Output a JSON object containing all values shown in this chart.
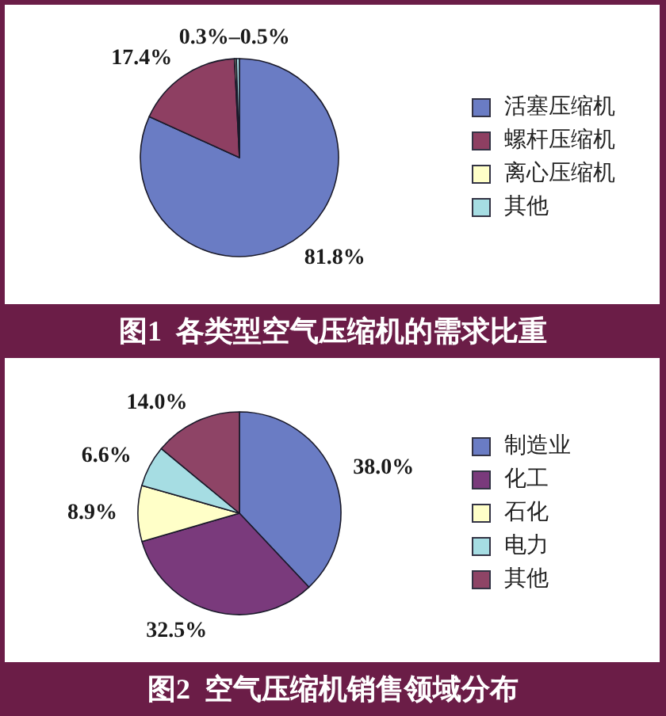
{
  "chart_data": [
    {
      "type": "pie",
      "title": "图1  各类型空气压缩机的需求比重",
      "categories": [
        "活塞压缩机",
        "螺杆压缩机",
        "离心压缩机",
        "其他"
      ],
      "values": [
        81.8,
        17.4,
        0.3,
        0.5
      ],
      "colors": [
        "#6a7cc4",
        "#8e3f62",
        "#ffffc8",
        "#a6dde3"
      ],
      "value_labels": [
        "81.8%",
        "17.4%",
        "0.3%–0.5%",
        null
      ],
      "legend": "right"
    },
    {
      "type": "pie",
      "title": "图2  空气压缩机销售领域分布",
      "categories": [
        "制造业",
        "化工",
        "石化",
        "电力",
        "其他"
      ],
      "values": [
        38.0,
        32.5,
        8.9,
        6.6,
        14.0
      ],
      "colors": [
        "#6a7cc4",
        "#7a3a7c",
        "#ffffc8",
        "#a6dde3",
        "#8e4466"
      ],
      "value_labels": [
        "38.0%",
        "32.5%",
        "8.9%",
        "6.6%",
        "14.0%"
      ],
      "legend": "right"
    }
  ]
}
